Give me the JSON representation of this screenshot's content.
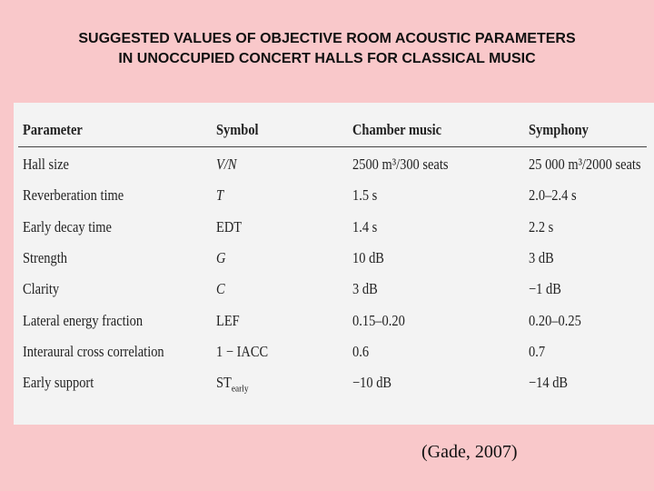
{
  "header": {
    "title": [
      "SUGGESTED VALUES OF OBJECTIVE ROOM ACOUSTIC PARAMETERS",
      "IN UNOCCUPIED CONCERT HALLS FOR CLASSICAL MUSIC"
    ]
  },
  "table": {
    "columns": [
      "Parameter",
      "Symbol",
      "Chamber music",
      "Symphony"
    ],
    "rows": [
      [
        "Hall size",
        "V/N",
        "2500 m³/300 seats",
        "25 000 m³/2000 seats"
      ],
      [
        "Reverberation time",
        "T",
        "1.5 s",
        "2.0–2.4 s"
      ],
      [
        "Early decay time",
        "EDT",
        "1.4 s",
        "2.2 s"
      ],
      [
        "Strength",
        "G",
        "10 dB",
        "3 dB"
      ],
      [
        "Clarity",
        "C",
        "3 dB",
        "−1 dB"
      ],
      [
        "Lateral energy fraction",
        "LEF",
        "0.15–0.20",
        "0.20–0.25"
      ],
      [
        "Interaural cross correlation",
        "1 − IACC",
        "0.6",
        "0.7"
      ],
      [
        "Early support",
        {
          "main": "ST",
          "sub": "early"
        },
        "−10 dB",
        "−14 dB"
      ]
    ]
  },
  "citation": "(Gade, 2007)"
}
